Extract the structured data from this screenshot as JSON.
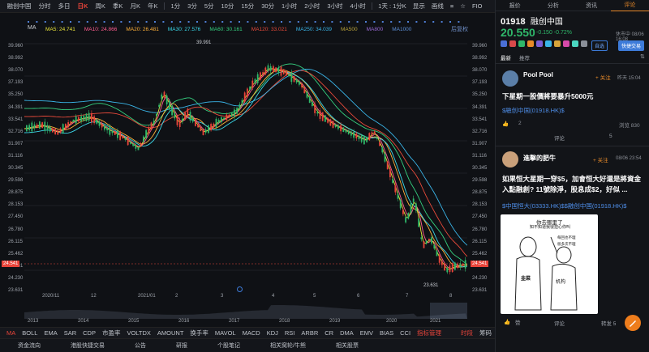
{
  "toolbar": {
    "items": [
      "融创中国",
      "分时",
      "多日",
      "日K",
      "周K",
      "季K",
      "月K",
      "年K",
      "1分",
      "3分",
      "5分",
      "10分",
      "15分",
      "30分",
      "1小时",
      "2小时",
      "3小时",
      "4小时"
    ],
    "active_index": 3,
    "adjust_label": "1天 : 1分K",
    "display_label": "显示",
    "draw_label": "画线",
    "extra_labels": [
      "≡",
      "☆",
      "FIO"
    ]
  },
  "ma_legend": {
    "first": "MA",
    "items": [
      {
        "label": "MA5: 24.741",
        "color": "#e8e33a"
      },
      {
        "label": "MA10: 24.866",
        "color": "#ff5d8f"
      },
      {
        "label": "MA20: 26.481",
        "color": "#ffb13a"
      },
      {
        "label": "MA30: 27.576",
        "color": "#3ad7e8"
      },
      {
        "label": "MA60: 30.161",
        "color": "#35d07f"
      },
      {
        "label": "MA120: 33.021",
        "color": "#e84a3a"
      },
      {
        "label": "MA250: 34.039",
        "color": "#3ab5e8"
      },
      {
        "label": "MA500",
        "color": "#b8a23a"
      },
      {
        "label": "MA800",
        "color": "#9a6bd6"
      },
      {
        "label": "MA1000",
        "color": "#5d8fd6"
      }
    ],
    "right_label": "后复权"
  },
  "price_axis": {
    "labels": [
      "39.960",
      "38.992",
      "38.070",
      "37.193",
      "35.250",
      "34.391",
      "33.541",
      "32.716",
      "31.907",
      "31.116",
      "30.345",
      "29.598",
      "28.875",
      "28.153",
      "27.450",
      "26.780",
      "26.115",
      "25.462",
      "24.841",
      "24.230",
      "23.631"
    ],
    "current": "24.541"
  },
  "left_axis": {
    "labels": [
      "39.960",
      "38.992",
      "38.070",
      "37.193",
      "35.250",
      "34.391",
      "33.541",
      "32.716",
      "31.907",
      "31.116",
      "30.345",
      "29.598",
      "28.875",
      "28.153",
      "27.450",
      "26.780",
      "26.115",
      "25.462",
      "24.841",
      "24.230",
      "23.631"
    ],
    "current": "24.541"
  },
  "chart_annotations": {
    "high": "39.991",
    "low": "23.631"
  },
  "date_axis": [
    "2020/11",
    "12",
    "2021/01",
    "2",
    "3",
    "4",
    "5",
    "6",
    "7",
    "8"
  ],
  "year_axis": [
    "2013",
    "2014",
    "2015",
    "2016",
    "2017",
    "2018",
    "2019",
    "2020",
    "2021"
  ],
  "indicators": {
    "items": [
      "MA",
      "BOLL",
      "EMA",
      "SAR",
      "CDP",
      "市盈率",
      "VOLTDX",
      "AMOUNT",
      "换手率",
      "MAVOL",
      "MACD",
      "KDJ",
      "RSI",
      "ARBR",
      "CR",
      "DMA",
      "EMV",
      "BIAS",
      "CCI"
    ],
    "manage": "指标管理",
    "timing": "时段",
    "detail": "筹码"
  },
  "bottom_bar": [
    "资金流向",
    "港股快捷交易",
    "公告",
    "研报",
    "个股笔记",
    "相关窝轮/牛熊",
    "相关股票"
  ],
  "panel": {
    "tabs": [
      "报价",
      "分析",
      "资讯",
      "评论"
    ],
    "active_tab": 3,
    "code": "01918",
    "name": "融创中国",
    "price": "20.550",
    "change": "-0.150 -0.72%",
    "market_status": "休市中 08/06 16:08",
    "trade_label": "快捷交易",
    "watch_label": "自选",
    "subtabs": [
      "最新",
      "推荐"
    ],
    "posts": [
      {
        "user": "Pool Pool",
        "follow": "+ 关注",
        "time": "昨天 15:04",
        "title": "下星期一股價將要暴升5000元",
        "link": "$融创中国(01918.HK)$",
        "likes": "2",
        "views": "浏览 830",
        "comment": "评论",
        "repost": "5"
      },
      {
        "user": "進擊的肥牛",
        "follow": "+ 关注",
        "time": "08/06 23:54",
        "title": "如果恒大星期一穿$5，加會恒大好還是將資金入點融創? 11號除淨，股息成$2，好似 ...",
        "link": "$中国恒大(03333.HK)$$融创中国(01918.HK)$",
        "meme_lines": [
          "你去哪里了",
          "知不知道我很担心你叫",
          "韭菜",
          "机构",
          "每回也不理",
          "很多次不理"
        ],
        "comment": "评论",
        "repost": "转发 5",
        "likes": "赞"
      }
    ]
  }
}
